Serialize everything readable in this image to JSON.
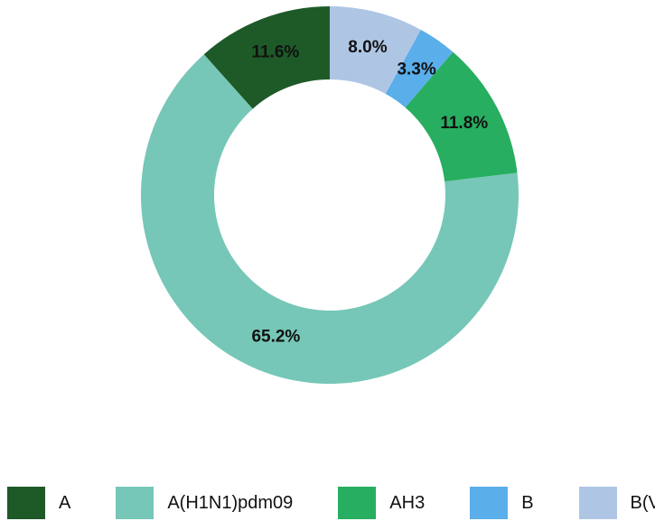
{
  "chart_data": {
    "type": "donut",
    "categories": [
      "A",
      "A(H1N1)pdm09",
      "AH3",
      "B",
      "B(Victoria)"
    ],
    "values": [
      11.6,
      65.2,
      11.8,
      3.3,
      8.0
    ],
    "value_labels": [
      "11.6%",
      "65.2%",
      "11.8%",
      "3.3%",
      "8.0%"
    ],
    "colors": [
      "#1e5a28",
      "#76c7b7",
      "#27ae60",
      "#5aaeea",
      "#aec6e4"
    ],
    "legend": "bottom"
  }
}
